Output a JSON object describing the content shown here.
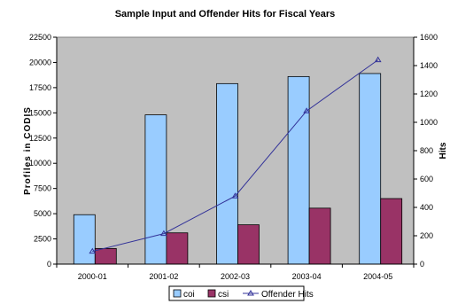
{
  "chart_data": {
    "type": "bar",
    "title": "Sample Input and Offender Hits for Fiscal Years",
    "categories": [
      "2000-01",
      "2001-02",
      "2002-03",
      "2003-04",
      "2004-05"
    ],
    "ylabel": "Profiles in CODIS",
    "y2label": "Hits",
    "ylim": [
      0,
      22500
    ],
    "y_ticks": [
      "0",
      "2500",
      "5000",
      "7500",
      "10000",
      "12500",
      "15000",
      "17500",
      "20000",
      "22500"
    ],
    "y2lim": [
      0,
      1600
    ],
    "y2_ticks": [
      "0",
      "200",
      "400",
      "600",
      "800",
      "1000",
      "1200",
      "1400",
      "1600"
    ],
    "grid": false,
    "legend_position": "bottom",
    "series": [
      {
        "name": "coi",
        "type": "bar",
        "axis": "left",
        "color": "#99CCFF",
        "values": [
          4900,
          14800,
          17900,
          18600,
          18900
        ]
      },
      {
        "name": "csi",
        "type": "bar",
        "axis": "left",
        "color": "#993366",
        "values": [
          1550,
          3100,
          3900,
          5550,
          6500
        ]
      },
      {
        "name": "Offender Hits",
        "type": "line",
        "axis": "right",
        "color": "#333399",
        "marker": "triangle",
        "values": [
          90,
          215,
          480,
          1080,
          1440
        ]
      }
    ],
    "plot_background": "#C0C0C0"
  }
}
